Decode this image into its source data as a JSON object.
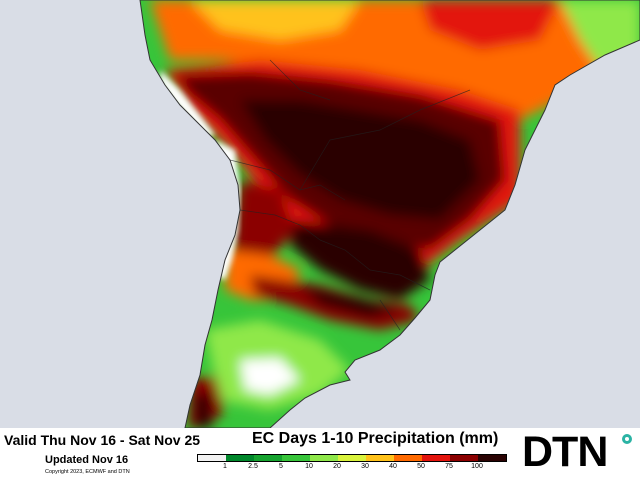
{
  "header": {
    "valid_period": "Valid Thu Nov 16 - Sat Nov 25",
    "updated": "Updated Nov 16",
    "copyright": "Copyright 2023, ECMWF and DTN"
  },
  "map": {
    "title": "EC Days 1-10 Precipitation (mm)",
    "ocean_color": "#d9dde6",
    "dry_color": "#ffffff"
  },
  "legend": {
    "ticks": [
      "1",
      "2.5",
      "5",
      "10",
      "20",
      "30",
      "40",
      "50",
      "75",
      "100"
    ],
    "colors": [
      "#f2f2f2",
      "#00872b",
      "#16a32f",
      "#37c53a",
      "#8fe84a",
      "#d9f33c",
      "#ffc21a",
      "#ff6a00",
      "#e3140d",
      "#8b0000",
      "#2a0303"
    ]
  },
  "brand": {
    "logo_text": "DTN",
    "accent": "#2bb3a4"
  }
}
